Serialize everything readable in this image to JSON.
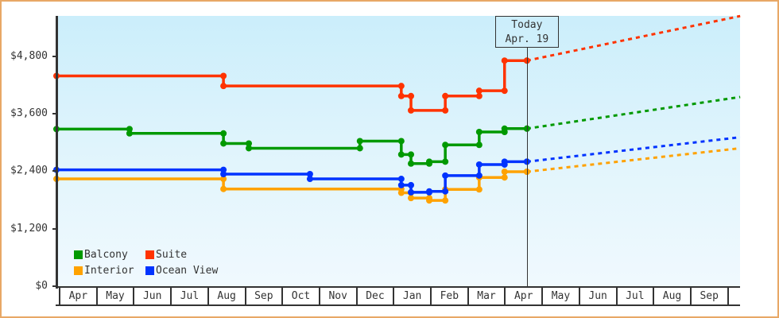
{
  "chart_data": {
    "type": "line",
    "title": "",
    "xlabel": "",
    "ylabel": "",
    "ylim": [
      0,
      5640
    ],
    "grid": false,
    "legend_position": "lower-left",
    "y_ticks": [
      {
        "value": 0,
        "label": "$0"
      },
      {
        "value": 1200,
        "label": "$1,200"
      },
      {
        "value": 2400,
        "label": "$2,400"
      },
      {
        "value": 3600,
        "label": "$3,600"
      },
      {
        "value": 4800,
        "label": "$4,800"
      }
    ],
    "x_ticks": [
      "Apr",
      "May",
      "Jun",
      "Jul",
      "Aug",
      "Sep",
      "Oct",
      "Nov",
      "Dec",
      "Jan",
      "Feb",
      "Mar",
      "Apr",
      "May",
      "Jun",
      "Jul",
      "Aug",
      "Sep"
    ],
    "today": {
      "t": 12.62,
      "line1": "Today",
      "line2": "Apr. 19"
    },
    "legend": [
      {
        "name": "Balcony",
        "color": "#009900"
      },
      {
        "name": "Suite",
        "color": "#ff3300"
      },
      {
        "name": "Interior",
        "color": "#ffa200"
      },
      {
        "name": "Ocean View",
        "color": "#0033ff"
      }
    ],
    "series": [
      {
        "name": "Interior",
        "color": "#ffa200",
        "points": [
          {
            "date": "Apr 1",
            "t": 0,
            "value": 2240
          },
          {
            "date": "Aug 15",
            "t": 4.48,
            "value": 2030
          },
          {
            "date": "Jan 8",
            "t": 9.25,
            "value": 1950
          },
          {
            "date": "Jan 16",
            "t": 9.51,
            "value": 1840
          },
          {
            "date": "Feb 1",
            "t": 10.0,
            "value": 1790
          },
          {
            "date": "Feb 13",
            "t": 10.43,
            "value": 2020
          },
          {
            "date": "Mar 11",
            "t": 11.34,
            "value": 2270
          },
          {
            "date": "Apr 1",
            "t": 12.02,
            "value": 2390
          },
          {
            "date": "Apr 19",
            "t": 12.62,
            "value": 2390
          }
        ],
        "projection": {
          "date": "Oct 10",
          "t": 18.34,
          "value": 2880
        }
      },
      {
        "name": "Ocean View",
        "color": "#0033ff",
        "points": [
          {
            "date": "Apr 1",
            "t": 0,
            "value": 2430
          },
          {
            "date": "Aug 15",
            "t": 4.48,
            "value": 2340
          },
          {
            "date": "Oct 25",
            "t": 6.8,
            "value": 2240
          },
          {
            "date": "Jan 8",
            "t": 9.25,
            "value": 2110
          },
          {
            "date": "Jan 16",
            "t": 9.51,
            "value": 1960
          },
          {
            "date": "Feb 1",
            "t": 10.0,
            "value": 1980
          },
          {
            "date": "Feb 13",
            "t": 10.43,
            "value": 2310
          },
          {
            "date": "Mar 11",
            "t": 11.34,
            "value": 2540
          },
          {
            "date": "Apr 1",
            "t": 12.02,
            "value": 2600
          },
          {
            "date": "Apr 19",
            "t": 12.62,
            "value": 2600
          }
        ],
        "projection": {
          "date": "Oct 10",
          "t": 18.34,
          "value": 3110
        }
      },
      {
        "name": "Balcony",
        "color": "#009900",
        "points": [
          {
            "date": "Apr 1",
            "t": 0,
            "value": 3280
          },
          {
            "date": "May 30",
            "t": 1.96,
            "value": 3190
          },
          {
            "date": "Aug 15",
            "t": 4.48,
            "value": 2980
          },
          {
            "date": "Sep 5",
            "t": 5.16,
            "value": 2880
          },
          {
            "date": "Dec 5",
            "t": 8.14,
            "value": 3030
          },
          {
            "date": "Jan 8",
            "t": 9.25,
            "value": 2750
          },
          {
            "date": "Jan 16",
            "t": 9.51,
            "value": 2560
          },
          {
            "date": "Feb 1",
            "t": 10.0,
            "value": 2600
          },
          {
            "date": "Feb 13",
            "t": 10.43,
            "value": 2950
          },
          {
            "date": "Mar 11",
            "t": 11.34,
            "value": 3220
          },
          {
            "date": "Apr 1",
            "t": 12.02,
            "value": 3290
          },
          {
            "date": "Apr 19",
            "t": 12.62,
            "value": 3290
          }
        ],
        "projection": {
          "date": "Oct 10",
          "t": 18.34,
          "value": 3950
        }
      },
      {
        "name": "Suite",
        "color": "#ff3300",
        "points": [
          {
            "date": "Apr 1",
            "t": 0,
            "value": 4390
          },
          {
            "date": "Aug 15",
            "t": 4.48,
            "value": 4180
          },
          {
            "date": "Jan 8",
            "t": 9.25,
            "value": 3970
          },
          {
            "date": "Jan 16",
            "t": 9.51,
            "value": 3670
          },
          {
            "date": "Feb 13",
            "t": 10.43,
            "value": 3970
          },
          {
            "date": "Mar 11",
            "t": 11.34,
            "value": 4080
          },
          {
            "date": "Apr 1",
            "t": 12.02,
            "value": 4710
          },
          {
            "date": "Apr 19",
            "t": 12.62,
            "value": 4710
          }
        ],
        "projection": {
          "date": "Oct 10",
          "t": 18.34,
          "value": 5640
        }
      }
    ]
  }
}
